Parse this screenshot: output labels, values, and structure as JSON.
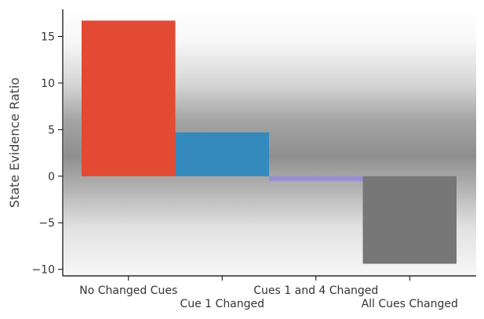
{
  "chart_data": {
    "type": "bar",
    "title": "",
    "xlabel": "",
    "ylabel": "State Evidence Ratio",
    "categories": [
      "No Changed Cues",
      "Cue 1 Changed",
      "Cues 1 and 4 Changed",
      "All Cues Changed"
    ],
    "values": [
      16.7,
      4.7,
      -0.5,
      -9.4
    ],
    "colors": [
      "#e24a33",
      "#348abd",
      "#988ed5",
      "#777777"
    ],
    "ylim": [
      -10.7,
      17.9
    ],
    "yticks": [
      -10,
      -5,
      0,
      5,
      10,
      15
    ],
    "ytick_labels": [
      "−10",
      "−5",
      "0",
      "5",
      "10",
      "15"
    ],
    "grid": false,
    "legend": "none"
  }
}
